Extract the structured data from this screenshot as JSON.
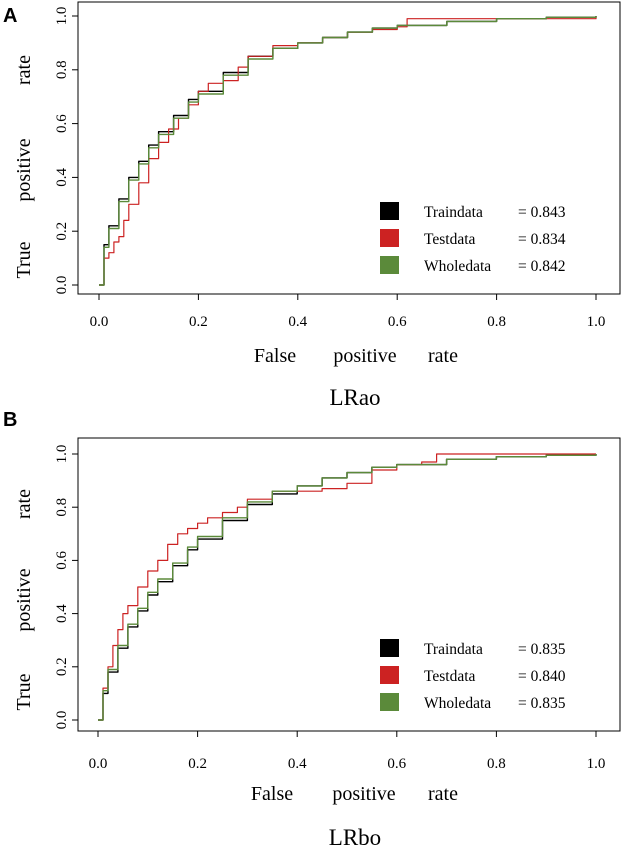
{
  "chart_data": [
    {
      "panel": "A",
      "type": "line",
      "title": "LRao",
      "xlabel_words": [
        "False",
        "positive",
        "rate"
      ],
      "ylabel_words": [
        "True",
        "positive",
        "rate"
      ],
      "xlim": [
        0,
        1
      ],
      "ylim": [
        0,
        1
      ],
      "xticks": [
        "0.0",
        "0.2",
        "0.4",
        "0.6",
        "0.8",
        "1.0"
      ],
      "yticks": [
        "0.0",
        "0.2",
        "0.4",
        "0.6",
        "0.8",
        "1.0"
      ],
      "grid": false,
      "legend_position": "bottom-right",
      "series": [
        {
          "name": "Traindata",
          "label": "= 0.843",
          "color": "#000000",
          "x": [
            0,
            0.01,
            0.02,
            0.04,
            0.06,
            0.08,
            0.1,
            0.12,
            0.15,
            0.18,
            0.2,
            0.25,
            0.3,
            0.35,
            0.4,
            0.45,
            0.5,
            0.55,
            0.6,
            0.7,
            0.8,
            0.9,
            1.0
          ],
          "y": [
            0,
            0.15,
            0.22,
            0.32,
            0.4,
            0.46,
            0.52,
            0.57,
            0.63,
            0.69,
            0.72,
            0.79,
            0.85,
            0.88,
            0.9,
            0.92,
            0.94,
            0.955,
            0.965,
            0.98,
            0.99,
            0.995,
            1.0
          ]
        },
        {
          "name": "Testdata",
          "label": "= 0.834",
          "color": "#cc2222",
          "x": [
            0,
            0.01,
            0.02,
            0.03,
            0.04,
            0.05,
            0.06,
            0.08,
            0.1,
            0.12,
            0.14,
            0.16,
            0.18,
            0.2,
            0.22,
            0.25,
            0.28,
            0.3,
            0.35,
            0.4,
            0.45,
            0.5,
            0.55,
            0.6,
            0.62,
            0.7,
            0.8,
            0.9,
            1.0
          ],
          "y": [
            0,
            0.1,
            0.12,
            0.16,
            0.18,
            0.24,
            0.3,
            0.38,
            0.47,
            0.53,
            0.58,
            0.62,
            0.67,
            0.72,
            0.75,
            0.76,
            0.81,
            0.85,
            0.89,
            0.9,
            0.92,
            0.94,
            0.95,
            0.96,
            0.99,
            0.99,
            0.99,
            0.99,
            1.0
          ]
        },
        {
          "name": "Wholedata",
          "label": "= 0.842",
          "color": "#5b8a3a",
          "x": [
            0,
            0.01,
            0.02,
            0.04,
            0.06,
            0.08,
            0.1,
            0.12,
            0.15,
            0.18,
            0.2,
            0.25,
            0.3,
            0.35,
            0.4,
            0.45,
            0.5,
            0.55,
            0.6,
            0.7,
            0.8,
            0.9,
            1.0
          ],
          "y": [
            0,
            0.14,
            0.21,
            0.31,
            0.39,
            0.45,
            0.51,
            0.56,
            0.62,
            0.68,
            0.71,
            0.78,
            0.84,
            0.88,
            0.9,
            0.92,
            0.94,
            0.955,
            0.965,
            0.98,
            0.99,
            0.995,
            1.0
          ]
        }
      ]
    },
    {
      "panel": "B",
      "type": "line",
      "title": "LRbo",
      "xlabel_words": [
        "False",
        "positive",
        "rate"
      ],
      "ylabel_words": [
        "True",
        "positive",
        "rate"
      ],
      "xlim": [
        0,
        1
      ],
      "ylim": [
        0,
        1
      ],
      "xticks": [
        "0.0",
        "0.2",
        "0.4",
        "0.6",
        "0.8",
        "1.0"
      ],
      "yticks": [
        "0.0",
        "0.2",
        "0.4",
        "0.6",
        "0.8",
        "1.0"
      ],
      "grid": false,
      "legend_position": "bottom-right",
      "series": [
        {
          "name": "Traindata",
          "label": "= 0.835",
          "color": "#000000",
          "x": [
            0,
            0.01,
            0.02,
            0.04,
            0.06,
            0.08,
            0.1,
            0.12,
            0.15,
            0.18,
            0.2,
            0.25,
            0.3,
            0.35,
            0.4,
            0.45,
            0.5,
            0.55,
            0.6,
            0.7,
            0.8,
            0.9,
            1.0
          ],
          "y": [
            0,
            0.1,
            0.18,
            0.27,
            0.35,
            0.41,
            0.47,
            0.52,
            0.58,
            0.64,
            0.68,
            0.75,
            0.81,
            0.85,
            0.88,
            0.91,
            0.93,
            0.95,
            0.96,
            0.98,
            0.99,
            0.995,
            1.0
          ]
        },
        {
          "name": "Testdata",
          "label": "= 0.840",
          "color": "#cc2222",
          "x": [
            0,
            0.01,
            0.02,
            0.03,
            0.04,
            0.05,
            0.06,
            0.08,
            0.1,
            0.12,
            0.14,
            0.16,
            0.18,
            0.2,
            0.22,
            0.25,
            0.28,
            0.3,
            0.35,
            0.4,
            0.45,
            0.5,
            0.55,
            0.6,
            0.65,
            0.68,
            0.8,
            0.9,
            1.0
          ],
          "y": [
            0,
            0.12,
            0.2,
            0.28,
            0.34,
            0.4,
            0.43,
            0.5,
            0.56,
            0.6,
            0.66,
            0.7,
            0.72,
            0.74,
            0.76,
            0.78,
            0.8,
            0.83,
            0.86,
            0.86,
            0.87,
            0.89,
            0.94,
            0.96,
            0.97,
            1.0,
            1.0,
            1.0,
            1.0
          ]
        },
        {
          "name": "Wholedata",
          "label": "= 0.835",
          "color": "#5b8a3a",
          "x": [
            0,
            0.01,
            0.02,
            0.04,
            0.06,
            0.08,
            0.1,
            0.12,
            0.15,
            0.18,
            0.2,
            0.25,
            0.3,
            0.35,
            0.4,
            0.45,
            0.5,
            0.55,
            0.6,
            0.7,
            0.8,
            0.9,
            1.0
          ],
          "y": [
            0,
            0.11,
            0.19,
            0.28,
            0.36,
            0.42,
            0.48,
            0.53,
            0.59,
            0.65,
            0.69,
            0.76,
            0.82,
            0.86,
            0.88,
            0.91,
            0.93,
            0.95,
            0.96,
            0.98,
            0.99,
            0.995,
            1.0
          ]
        }
      ]
    }
  ]
}
